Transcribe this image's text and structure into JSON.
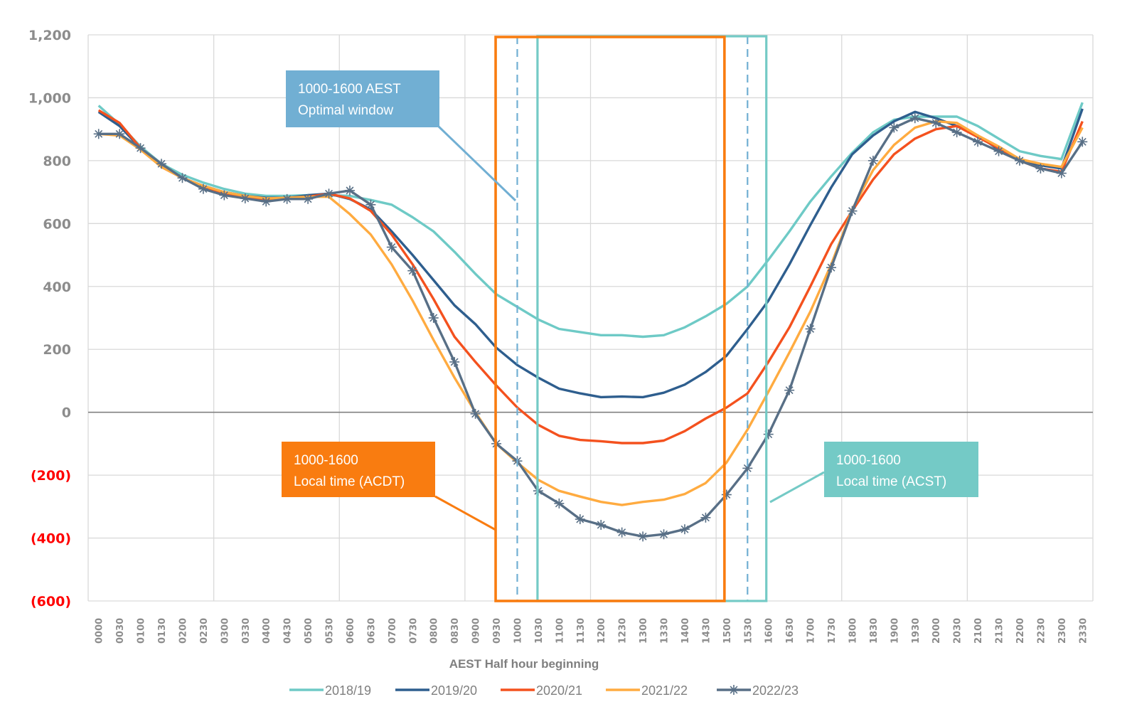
{
  "chart_data": {
    "type": "line",
    "title": "",
    "xlabel": "AEST Half hour beginning",
    "ylabel": "",
    "ylim": [
      -600,
      1200
    ],
    "yticks": [
      1200,
      1000,
      800,
      600,
      400,
      200,
      0,
      -200,
      -400,
      -600
    ],
    "ytick_labels": [
      "1,200",
      "1,000",
      "800",
      "600",
      "400",
      "200",
      "0",
      "(200)",
      "(400)",
      "(600)"
    ],
    "grid": true,
    "legend_position": "bottom",
    "categories": [
      "0000",
      "0030",
      "0100",
      "0130",
      "0200",
      "0230",
      "0300",
      "0330",
      "0400",
      "0430",
      "0500",
      "0530",
      "0600",
      "0630",
      "0700",
      "0730",
      "0800",
      "0830",
      "0900",
      "0930",
      "1000",
      "1030",
      "1100",
      "1130",
      "1200",
      "1230",
      "1300",
      "1330",
      "1400",
      "1430",
      "1500",
      "1530",
      "1600",
      "1630",
      "1700",
      "1730",
      "1800",
      "1830",
      "1900",
      "1930",
      "2000",
      "2030",
      "2100",
      "2130",
      "2200",
      "2230",
      "2300",
      "2330"
    ],
    "series": [
      {
        "name": "2018/19",
        "color": "#6ecac6",
        "marker": "none",
        "values": [
          975,
          915,
          845,
          790,
          755,
          730,
          710,
          695,
          688,
          688,
          690,
          690,
          688,
          675,
          660,
          620,
          575,
          510,
          440,
          375,
          335,
          295,
          265,
          255,
          245,
          245,
          240,
          245,
          270,
          305,
          345,
          400,
          485,
          575,
          670,
          750,
          825,
          890,
          930,
          940,
          940,
          940,
          910,
          870,
          830,
          815,
          805,
          985
        ]
      },
      {
        "name": "2019/20",
        "color": "#2e5e8e",
        "marker": "none",
        "values": [
          955,
          910,
          840,
          785,
          745,
          720,
          700,
          688,
          682,
          682,
          690,
          695,
          678,
          645,
          575,
          500,
          420,
          340,
          280,
          205,
          150,
          110,
          75,
          60,
          48,
          50,
          48,
          62,
          88,
          128,
          180,
          265,
          355,
          470,
          595,
          715,
          820,
          880,
          925,
          955,
          935,
          910,
          880,
          835,
          800,
          785,
          775,
          965
        ]
      },
      {
        "name": "2020/21",
        "color": "#f4511e",
        "marker": "none",
        "values": [
          960,
          920,
          840,
          780,
          745,
          715,
          695,
          680,
          675,
          680,
          685,
          695,
          680,
          640,
          565,
          470,
          360,
          240,
          160,
          85,
          15,
          -40,
          -75,
          -88,
          -92,
          -98,
          -98,
          -90,
          -60,
          -20,
          15,
          60,
          160,
          270,
          400,
          535,
          640,
          740,
          820,
          870,
          900,
          910,
          875,
          840,
          800,
          775,
          765,
          925
        ]
      },
      {
        "name": "2021/22",
        "color": "#ffab40",
        "marker": "none",
        "values": [
          885,
          880,
          835,
          780,
          745,
          720,
          700,
          688,
          680,
          682,
          685,
          685,
          630,
          565,
          470,
          355,
          230,
          110,
          0,
          -100,
          -160,
          -215,
          -250,
          -268,
          -285,
          -295,
          -285,
          -278,
          -260,
          -225,
          -160,
          -55,
          65,
          190,
          320,
          470,
          645,
          770,
          850,
          905,
          925,
          920,
          880,
          845,
          805,
          790,
          780,
          905
        ]
      },
      {
        "name": "2022/23",
        "color": "#586f86",
        "marker": "asterisk",
        "values": [
          885,
          885,
          840,
          790,
          745,
          710,
          690,
          680,
          670,
          678,
          678,
          695,
          705,
          660,
          525,
          450,
          300,
          160,
          -5,
          -100,
          -155,
          -250,
          -290,
          -340,
          -358,
          -382,
          -395,
          -388,
          -372,
          -335,
          -262,
          -178,
          -70,
          70,
          265,
          460,
          640,
          800,
          905,
          935,
          920,
          890,
          860,
          830,
          800,
          775,
          760,
          860
        ]
      }
    ],
    "annotations": [
      {
        "lines": [
          "1000-1600 AEST",
          "Optimal window"
        ],
        "color": "#71afd3",
        "style": "dashed",
        "range": [
          "1000",
          "1530"
        ]
      },
      {
        "lines": [
          "1000-1600",
          "Local time (ACDT)"
        ],
        "color": "#f97c10",
        "style": "solid-box",
        "range": [
          "0930",
          "1500"
        ]
      },
      {
        "lines": [
          "1000-1600",
          "Local time (ACST)"
        ],
        "color": "#74cac6",
        "style": "solid-box",
        "range": [
          "1030",
          "1600"
        ]
      }
    ]
  }
}
